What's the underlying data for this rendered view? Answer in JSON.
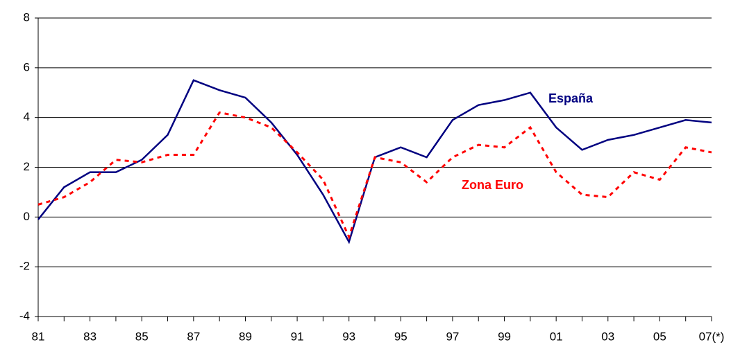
{
  "chart_data": {
    "type": "line",
    "categories": [
      "81",
      null,
      "83",
      null,
      "85",
      null,
      "87",
      null,
      "89",
      null,
      "91",
      null,
      "93",
      null,
      "95",
      null,
      "97",
      null,
      "99",
      null,
      "01",
      null,
      "03",
      null,
      "05",
      null,
      "07(*)"
    ],
    "series": [
      {
        "name": "España",
        "color": "#000080",
        "dash": false,
        "values": [
          -0.1,
          1.2,
          1.8,
          1.8,
          2.3,
          3.3,
          5.5,
          5.1,
          4.8,
          3.8,
          2.5,
          0.9,
          -1.0,
          2.4,
          2.8,
          2.4,
          3.9,
          4.5,
          4.7,
          5.0,
          3.6,
          2.7,
          3.1,
          3.3,
          3.6,
          3.9,
          3.8
        ]
      },
      {
        "name": "Zona Euro",
        "color": "#ff0000",
        "dash": true,
        "values": [
          0.5,
          0.8,
          1.4,
          2.3,
          2.2,
          2.5,
          2.5,
          4.2,
          4.0,
          3.6,
          2.6,
          1.5,
          -0.8,
          2.4,
          2.2,
          1.4,
          2.4,
          2.9,
          2.8,
          3.6,
          1.8,
          0.9,
          0.8,
          1.8,
          1.5,
          2.8,
          2.6
        ]
      }
    ],
    "ylim": [
      -4,
      8
    ],
    "yticks": [
      -4,
      -2,
      0,
      2,
      4,
      6,
      8
    ],
    "grid": true
  }
}
